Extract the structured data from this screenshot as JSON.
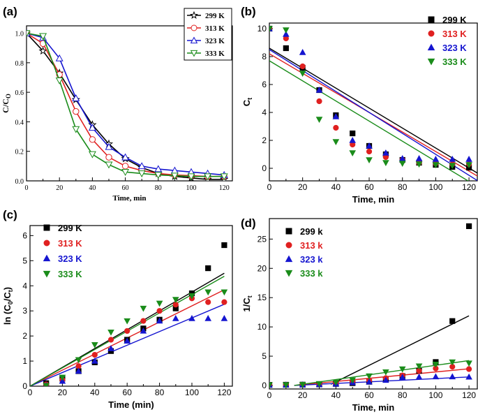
{
  "chart_data": [
    {
      "panel_label": "(a)",
      "type": "line",
      "xlabel": "Time, min",
      "ylabel": "C/C",
      "ylabel_sub": "O",
      "xlim": [
        0,
        125
      ],
      "ylim": [
        0,
        1.05
      ],
      "xticks": [
        0,
        20,
        40,
        60,
        80,
        100,
        120
      ],
      "yticks": [
        0.0,
        0.2,
        0.4,
        0.6,
        0.8,
        1.0
      ],
      "yticklabels": [
        "0.0",
        "0.2",
        "0.4",
        "0.6",
        "0.8",
        "1.0"
      ],
      "legend_position": "top-right",
      "x": [
        0,
        10,
        20,
        30,
        40,
        50,
        60,
        70,
        80,
        90,
        100,
        110,
        120
      ],
      "series": [
        {
          "name": "299 K",
          "color": "#000000",
          "marker": "star",
          "values": [
            1.0,
            0.88,
            0.73,
            0.55,
            0.38,
            0.25,
            0.15,
            0.09,
            0.05,
            0.03,
            0.02,
            0.01,
            0.01
          ]
        },
        {
          "name": "313 K",
          "color": "#e02020",
          "marker": "circle",
          "values": [
            1.0,
            0.93,
            0.72,
            0.47,
            0.28,
            0.16,
            0.1,
            0.07,
            0.05,
            0.04,
            0.035,
            0.03,
            0.03
          ]
        },
        {
          "name": "323 K",
          "color": "#1515d0",
          "marker": "triangle-up",
          "values": [
            1.0,
            0.97,
            0.83,
            0.56,
            0.36,
            0.23,
            0.16,
            0.1,
            0.08,
            0.07,
            0.06,
            0.05,
            0.04
          ]
        },
        {
          "name": "333 K",
          "color": "#1a8c1a",
          "marker": "triangle-down",
          "values": [
            1.0,
            0.98,
            0.68,
            0.35,
            0.18,
            0.11,
            0.06,
            0.05,
            0.04,
            0.035,
            0.03,
            0.03,
            0.03
          ]
        }
      ]
    },
    {
      "panel_label": "(b)",
      "type": "scatter",
      "xlabel": "Time, min",
      "ylabel": "C",
      "ylabel_sub": "t",
      "xlim": [
        0,
        125
      ],
      "ylim": [
        -0.9,
        10.4
      ],
      "xticks": [
        0,
        20,
        40,
        60,
        80,
        100,
        120
      ],
      "yticks": [
        0,
        2,
        4,
        6,
        8,
        10
      ],
      "yticklabels": [
        "0",
        "2",
        "4",
        "6",
        "8",
        "10"
      ],
      "legend_position": "top-right",
      "x": [
        0,
        10,
        20,
        30,
        40,
        50,
        60,
        70,
        80,
        90,
        100,
        110,
        120
      ],
      "series": [
        {
          "name": "299 K",
          "color": "#000000",
          "marker": "square",
          "values": [
            10.0,
            8.6,
            7.2,
            5.6,
            3.8,
            2.5,
            1.6,
            1.0,
            0.6,
            0.4,
            0.25,
            0.1,
            0.05
          ],
          "fit": [
            8.6,
            0.0715
          ]
        },
        {
          "name": "313 K",
          "color": "#e02020",
          "marker": "circle",
          "values": [
            10.0,
            9.3,
            7.3,
            4.8,
            2.9,
            1.7,
            1.2,
            0.8,
            0.6,
            0.4,
            0.35,
            0.3,
            0.3
          ],
          "fit": [
            8.2,
            0.07
          ]
        },
        {
          "name": "323 K",
          "color": "#1515d0",
          "marker": "triangle-up",
          "values": [
            10.0,
            9.6,
            8.3,
            5.6,
            3.7,
            2.0,
            1.6,
            1.1,
            0.7,
            0.7,
            0.65,
            0.65,
            0.65
          ],
          "fit": [
            8.5,
            0.075
          ]
        },
        {
          "name": "333 K",
          "color": "#1a8c1a",
          "marker": "triangle-down",
          "values": [
            10.0,
            9.9,
            6.8,
            3.5,
            1.9,
            1.1,
            0.6,
            0.4,
            0.35,
            0.3,
            0.25,
            0.2,
            0.25
          ],
          "fit": [
            7.7,
            0.072
          ]
        }
      ]
    },
    {
      "panel_label": "(c)",
      "type": "scatter",
      "xlabel": "Time (min)",
      "ylabel": "ln (C",
      "ylabel_sub0": "0",
      "ylabel_mid": "/C",
      "ylabel_sub": "t",
      "ylabel_end": ")",
      "xlim": [
        0,
        125
      ],
      "ylim": [
        0,
        6.4
      ],
      "xticks": [
        0,
        20,
        40,
        60,
        80,
        100,
        120
      ],
      "yticks": [
        0,
        1,
        2,
        3,
        4,
        5,
        6
      ],
      "yticklabels": [
        "0",
        "1",
        "2",
        "3",
        "4",
        "5",
        "6"
      ],
      "legend_position": "top-left",
      "x": [
        10,
        20,
        30,
        40,
        50,
        60,
        70,
        80,
        90,
        100,
        110,
        120
      ],
      "series": [
        {
          "name": "299 K",
          "color": "#000000",
          "marker": "square",
          "values": [
            0.12,
            0.3,
            0.6,
            0.95,
            1.4,
            1.85,
            2.3,
            2.65,
            3.1,
            3.7,
            4.7,
            5.62
          ],
          "fit": [
            0,
            0.0375
          ]
        },
        {
          "name": "313 K",
          "color": "#e02020",
          "marker": "circle",
          "values": [
            0.07,
            0.25,
            0.8,
            1.25,
            1.85,
            2.2,
            2.6,
            3.0,
            3.25,
            3.5,
            3.35,
            3.35
          ],
          "fit": [
            0,
            0.032
          ]
        },
        {
          "name": "323 K",
          "color": "#1515d0",
          "marker": "triangle-up",
          "values": [
            0.03,
            0.2,
            0.6,
            1.0,
            1.5,
            1.8,
            2.2,
            2.6,
            2.7,
            2.7,
            2.7,
            2.7
          ],
          "fit": [
            0,
            0.0272
          ]
        },
        {
          "name": "333 K",
          "color": "#1a8c1a",
          "marker": "triangle-down",
          "values": [
            0.02,
            0.35,
            1.05,
            1.65,
            2.15,
            2.6,
            3.1,
            3.3,
            3.45,
            3.6,
            3.75,
            3.75
          ],
          "fit": [
            0,
            0.0365
          ]
        }
      ]
    },
    {
      "panel_label": "(d)",
      "type": "scatter",
      "xlabel": "Time, min",
      "ylabel": "1/C",
      "ylabel_sub": "t",
      "xlim": [
        0,
        125
      ],
      "ylim": [
        -0.6,
        28.5
      ],
      "xticks": [
        0,
        20,
        40,
        60,
        80,
        100,
        120
      ],
      "yticks": [
        0,
        5,
        10,
        15,
        20,
        25
      ],
      "yticklabels": [
        "0",
        "5",
        "10",
        "15",
        "20",
        "25"
      ],
      "legend_position": "top-left",
      "x": [
        0,
        10,
        20,
        30,
        40,
        50,
        60,
        70,
        80,
        90,
        100,
        110,
        120
      ],
      "series": [
        {
          "name": "299 k",
          "color": "#000000",
          "marker": "square",
          "values": [
            0.1,
            0.12,
            0.14,
            0.18,
            0.27,
            0.4,
            0.63,
            1.0,
            1.6,
            2.5,
            4.0,
            11.0,
            27.2
          ]
        },
        {
          "name": "313 k",
          "color": "#e02020",
          "marker": "circle",
          "values": [
            0.1,
            0.11,
            0.14,
            0.21,
            0.35,
            0.6,
            0.85,
            1.25,
            1.7,
            2.5,
            2.9,
            3.2,
            2.8
          ]
        },
        {
          "name": "323 k",
          "color": "#1515d0",
          "marker": "triangle-up",
          "values": [
            0.1,
            0.1,
            0.12,
            0.18,
            0.27,
            0.5,
            0.62,
            0.9,
            1.4,
            1.45,
            1.5,
            1.5,
            1.45
          ]
        },
        {
          "name": "333 k",
          "color": "#1a8c1a",
          "marker": "triangle-down",
          "values": [
            0.1,
            0.1,
            0.15,
            0.29,
            0.53,
            0.9,
            1.6,
            2.3,
            2.8,
            3.3,
            3.6,
            4.0,
            3.8
          ]
        }
      ],
      "fit_lines": [
        {
          "series": "299 k",
          "x": [
            37,
            120
          ],
          "y": [
            0.2,
            11.9
          ]
        },
        {
          "series": "313 k",
          "x": [
            15,
            120
          ],
          "y": [
            0,
            2.85
          ]
        },
        {
          "series": "323 k",
          "x": [
            15,
            120
          ],
          "y": [
            0,
            1.45
          ]
        },
        {
          "series": "333 k",
          "x": [
            15,
            120
          ],
          "y": [
            0,
            4.25
          ]
        }
      ]
    }
  ]
}
